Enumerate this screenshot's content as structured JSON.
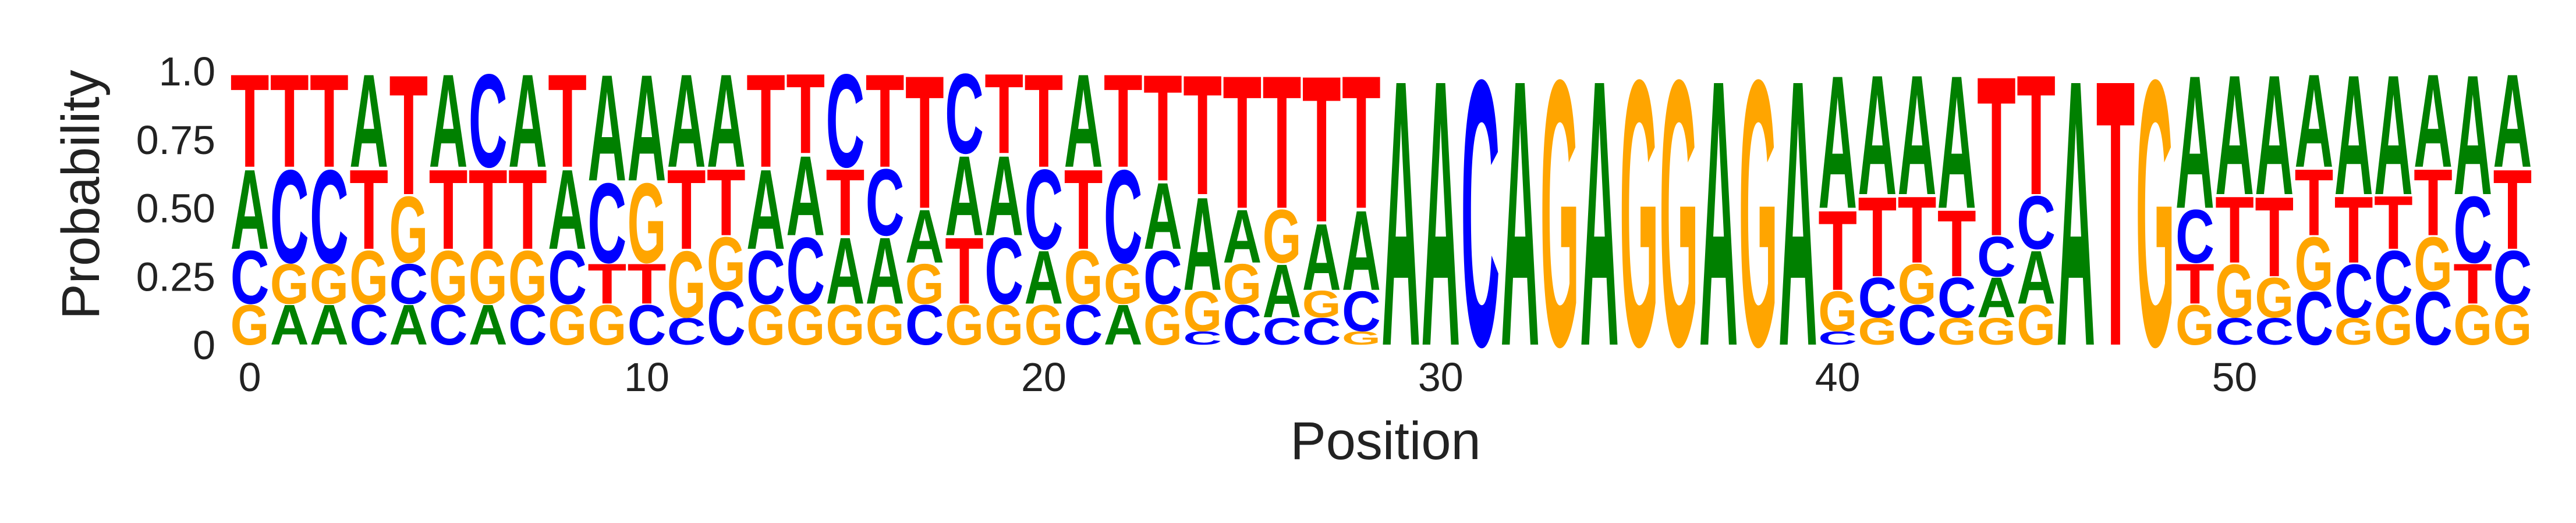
{
  "chart_data": {
    "type": "sequence-logo",
    "xlabel": "Position",
    "ylabel": "Probability",
    "xlim": [
      0,
      57
    ],
    "ylim": [
      0,
      1
    ],
    "xticks": [
      0,
      10,
      20,
      30,
      40,
      50
    ],
    "xtick_labels": [
      "0",
      "10",
      "20",
      "30",
      "40",
      "50"
    ],
    "yticks": [
      0,
      0.25,
      0.5,
      0.75,
      1.0
    ],
    "ytick_labels": [
      "0",
      "0.25",
      "0.50",
      "0.75",
      "1.0"
    ],
    "grid": false,
    "colors": {
      "A": "#008000",
      "C": "#0000ff",
      "G": "#ffa500",
      "T": "#ff0000"
    },
    "positions": [
      {
        "A": 0.3,
        "C": 0.2,
        "G": 0.15,
        "T": 0.35
      },
      {
        "A": 0.15,
        "C": 0.35,
        "G": 0.15,
        "T": 0.35
      },
      {
        "A": 0.15,
        "C": 0.35,
        "G": 0.15,
        "T": 0.35
      },
      {
        "A": 0.35,
        "C": 0.15,
        "G": 0.2,
        "T": 0.3
      },
      {
        "A": 0.15,
        "C": 0.15,
        "G": 0.25,
        "T": 0.45
      },
      {
        "A": 0.35,
        "C": 0.15,
        "G": 0.2,
        "T": 0.3
      },
      {
        "A": 0.15,
        "C": 0.35,
        "G": 0.2,
        "T": 0.3
      },
      {
        "A": 0.35,
        "C": 0.15,
        "G": 0.2,
        "T": 0.3
      },
      {
        "A": 0.3,
        "C": 0.2,
        "G": 0.15,
        "T": 0.35
      },
      {
        "A": 0.4,
        "C": 0.3,
        "G": 0.15,
        "T": 0.15
      },
      {
        "A": 0.4,
        "C": 0.15,
        "G": 0.3,
        "T": 0.15
      },
      {
        "A": 0.35,
        "C": 0.1,
        "G": 0.25,
        "T": 0.3
      },
      {
        "A": 0.35,
        "C": 0.2,
        "G": 0.2,
        "T": 0.25
      },
      {
        "A": 0.3,
        "C": 0.2,
        "G": 0.15,
        "T": 0.35
      },
      {
        "A": 0.3,
        "C": 0.25,
        "G": 0.15,
        "T": 0.3
      },
      {
        "A": 0.25,
        "C": 0.35,
        "G": 0.15,
        "T": 0.25
      },
      {
        "A": 0.25,
        "C": 0.25,
        "G": 0.15,
        "T": 0.35
      },
      {
        "A": 0.2,
        "C": 0.15,
        "G": 0.15,
        "T": 0.5
      },
      {
        "A": 0.3,
        "C": 0.3,
        "G": 0.15,
        "T": 0.25
      },
      {
        "A": 0.3,
        "C": 0.25,
        "G": 0.15,
        "T": 0.3
      },
      {
        "A": 0.2,
        "C": 0.3,
        "G": 0.15,
        "T": 0.35
      },
      {
        "A": 0.35,
        "C": 0.15,
        "G": 0.2,
        "T": 0.3
      },
      {
        "A": 0.15,
        "C": 0.35,
        "G": 0.15,
        "T": 0.35
      },
      {
        "A": 0.25,
        "C": 0.2,
        "G": 0.15,
        "T": 0.4
      },
      {
        "A": 0.35,
        "C": 0.05,
        "G": 0.15,
        "T": 0.45
      },
      {
        "A": 0.2,
        "C": 0.15,
        "G": 0.15,
        "T": 0.5
      },
      {
        "A": 0.2,
        "C": 0.1,
        "G": 0.2,
        "T": 0.5
      },
      {
        "A": 0.25,
        "C": 0.1,
        "G": 0.1,
        "T": 0.55
      },
      {
        "A": 0.3,
        "C": 0.15,
        "G": 0.05,
        "T": 0.5
      },
      {
        "A": 1.0,
        "C": 0,
        "G": 0,
        "T": 0
      },
      {
        "A": 1.0,
        "C": 0,
        "G": 0,
        "T": 0
      },
      {
        "A": 0,
        "C": 1.0,
        "G": 0,
        "T": 0
      },
      {
        "A": 1.0,
        "C": 0,
        "G": 0,
        "T": 0
      },
      {
        "A": 0,
        "C": 0,
        "G": 1.0,
        "T": 0
      },
      {
        "A": 1.0,
        "C": 0,
        "G": 0,
        "T": 0
      },
      {
        "A": 0,
        "C": 0,
        "G": 1.0,
        "T": 0
      },
      {
        "A": 0,
        "C": 0,
        "G": 1.0,
        "T": 0
      },
      {
        "A": 1.0,
        "C": 0,
        "G": 0,
        "T": 0
      },
      {
        "A": 0,
        "C": 0,
        "G": 1.0,
        "T": 0
      },
      {
        "A": 1.0,
        "C": 0,
        "G": 0,
        "T": 0
      },
      {
        "A": 0.5,
        "C": 0.05,
        "G": 0.15,
        "T": 0.3
      },
      {
        "A": 0.45,
        "C": 0.15,
        "G": 0.1,
        "T": 0.3
      },
      {
        "A": 0.45,
        "C": 0.15,
        "G": 0.15,
        "T": 0.25
      },
      {
        "A": 0.5,
        "C": 0.15,
        "G": 0.1,
        "T": 0.25
      },
      {
        "A": 0.15,
        "C": 0.15,
        "G": 0.1,
        "T": 0.6
      },
      {
        "A": 0.2,
        "C": 0.2,
        "G": 0.15,
        "T": 0.45
      },
      {
        "A": 1.0,
        "C": 0,
        "G": 0,
        "T": 0
      },
      {
        "A": 0,
        "C": 0,
        "G": 0,
        "T": 1.0
      },
      {
        "A": 0,
        "C": 0,
        "G": 1.0,
        "T": 0
      },
      {
        "A": 0.5,
        "C": 0.2,
        "G": 0.15,
        "T": 0.15
      },
      {
        "A": 0.45,
        "C": 0.1,
        "G": 0.2,
        "T": 0.25
      },
      {
        "A": 0.45,
        "C": 0.1,
        "G": 0.15,
        "T": 0.3
      },
      {
        "A": 0.35,
        "C": 0.2,
        "G": 0.2,
        "T": 0.25
      },
      {
        "A": 0.45,
        "C": 0.2,
        "G": 0.1,
        "T": 0.25
      },
      {
        "A": 0.45,
        "C": 0.2,
        "G": 0.15,
        "T": 0.2
      },
      {
        "A": 0.35,
        "C": 0.2,
        "G": 0.2,
        "T": 0.25
      },
      {
        "A": 0.45,
        "C": 0.25,
        "G": 0.15,
        "T": 0.15
      },
      {
        "A": 0.35,
        "C": 0.2,
        "G": 0.15,
        "T": 0.3
      }
    ]
  }
}
